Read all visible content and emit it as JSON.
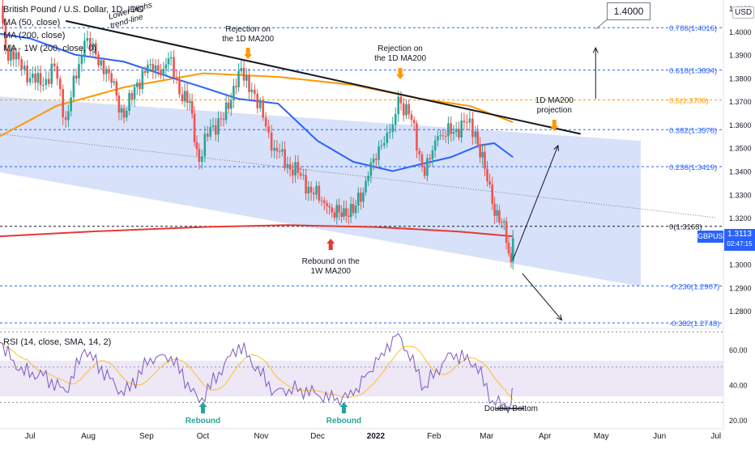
{
  "title": "British Pound / U.S. Dollar, 1D, IDC",
  "legend": [
    "MA (50, close)",
    "MA (200, close)",
    "MA · 1W (200, close, 0)"
  ],
  "currency_badge": "USD",
  "ticker_label": "GBPUSD",
  "last_price": "1.3113",
  "countdown": "02:47:15",
  "callout_target": "1.4000",
  "rsi_legend": "RSI (14, close, SMA, 14, 2)",
  "colors": {
    "candle_up": "#26a69a",
    "candle_down": "#ef5350",
    "ma50": "#2962ff",
    "ma200": "#ff9800",
    "ma1w": "#e53935",
    "channel_fill": "#c9d7f7",
    "rsi_line": "#7e57c2",
    "rsi_ma": "#fbc02d",
    "fib_line": "#2962ff",
    "fib_half": "#ff9800"
  },
  "annotations": {
    "lower_highs": "Lower Highs\ntrend-line",
    "rejection_1d_top": "Rejection on\nthe 1D MA200",
    "rejection_1d_mid": "Rejection on\nthe 1D MA200",
    "rebound_1w": "Rebound on the\n1W MA200",
    "ma200_projection": "1D MA200\nprojection",
    "double_bottom": "Double Bottom",
    "rebound_rsi_1": "Rebound",
    "rebound_rsi_2": "Rebound"
  },
  "fib_levels": [
    {
      "label": "0.786(1.4016)",
      "price": 1.4016
    },
    {
      "label": "0.618(1.3834)",
      "price": 1.3834
    },
    {
      "label": "0.5(1.3706)",
      "price": 1.3706
    },
    {
      "label": "0.382(1.3578)",
      "price": 1.3578
    },
    {
      "label": "0.236(1.3419)",
      "price": 1.3419
    },
    {
      "label": "0(1.3163)",
      "price": 1.3163
    },
    {
      "label": "-0.236(1.2907)",
      "price": 1.2907
    },
    {
      "label": "-0.382(1.2748)",
      "price": 1.2748
    }
  ],
  "chart_data": {
    "type": "candlestick",
    "title": "British Pound / U.S. Dollar, 1D, IDC",
    "symbol": "GBPUSD",
    "price_axis": {
      "ticks": [
        "1.4100",
        "1.4000",
        "1.3900",
        "1.3800",
        "1.3700",
        "1.3600",
        "1.3500",
        "1.3400",
        "1.3300",
        "1.3200",
        "1.3100",
        "1.3000",
        "1.2900",
        "1.2800"
      ],
      "range": [
        1.2745,
        1.4135
      ]
    },
    "time_axis": {
      "ticks": [
        "Jul",
        "Aug",
        "Sep",
        "Oct",
        "Nov",
        "Dec",
        "2022",
        "Feb",
        "Mar",
        "Apr",
        "May",
        "Jun",
        "Jul"
      ],
      "range": [
        "2021-06-15",
        "2022-07-05"
      ]
    },
    "closes": [
      {
        "date": "2021-06-15",
        "close": 1.411
      },
      {
        "date": "2021-06-18",
        "close": 1.392
      },
      {
        "date": "2021-06-25",
        "close": 1.388
      },
      {
        "date": "2021-07-01",
        "close": 1.38
      },
      {
        "date": "2021-07-08",
        "close": 1.377
      },
      {
        "date": "2021-07-14",
        "close": 1.385
      },
      {
        "date": "2021-07-20",
        "close": 1.362
      },
      {
        "date": "2021-07-27",
        "close": 1.386
      },
      {
        "date": "2021-07-30",
        "close": 1.396
      },
      {
        "date": "2021-08-05",
        "close": 1.39
      },
      {
        "date": "2021-08-12",
        "close": 1.382
      },
      {
        "date": "2021-08-20",
        "close": 1.363
      },
      {
        "date": "2021-08-27",
        "close": 1.378
      },
      {
        "date": "2021-09-03",
        "close": 1.386
      },
      {
        "date": "2021-09-10",
        "close": 1.384
      },
      {
        "date": "2021-09-14",
        "close": 1.389
      },
      {
        "date": "2021-09-20",
        "close": 1.37
      },
      {
        "date": "2021-09-24",
        "close": 1.37
      },
      {
        "date": "2021-09-29",
        "close": 1.344
      },
      {
        "date": "2021-10-05",
        "close": 1.359
      },
      {
        "date": "2021-10-12",
        "close": 1.362
      },
      {
        "date": "2021-10-20",
        "close": 1.383
      },
      {
        "date": "2021-10-27",
        "close": 1.375
      },
      {
        "date": "2021-11-02",
        "close": 1.363
      },
      {
        "date": "2021-11-08",
        "close": 1.35
      },
      {
        "date": "2021-11-15",
        "close": 1.343
      },
      {
        "date": "2021-11-22",
        "close": 1.338
      },
      {
        "date": "2021-11-29",
        "close": 1.33
      },
      {
        "date": "2021-12-06",
        "close": 1.325
      },
      {
        "date": "2021-12-10",
        "close": 1.32
      },
      {
        "date": "2021-12-15",
        "close": 1.324
      },
      {
        "date": "2021-12-20",
        "close": 1.322
      },
      {
        "date": "2021-12-28",
        "close": 1.338
      },
      {
        "date": "2022-01-04",
        "close": 1.351
      },
      {
        "date": "2022-01-10",
        "close": 1.36
      },
      {
        "date": "2022-01-13",
        "close": 1.372
      },
      {
        "date": "2022-01-20",
        "close": 1.362
      },
      {
        "date": "2022-01-27",
        "close": 1.338
      },
      {
        "date": "2022-02-03",
        "close": 1.355
      },
      {
        "date": "2022-02-10",
        "close": 1.356
      },
      {
        "date": "2022-02-17",
        "close": 1.361
      },
      {
        "date": "2022-02-23",
        "close": 1.357
      },
      {
        "date": "2022-02-28",
        "close": 1.341
      },
      {
        "date": "2022-03-04",
        "close": 1.326
      },
      {
        "date": "2022-03-09",
        "close": 1.318
      },
      {
        "date": "2022-03-14",
        "close": 1.301
      },
      {
        "date": "2022-03-15",
        "close": 1.3113
      }
    ],
    "rsi": {
      "name": "RSI (14, close, SMA, 14, 2)",
      "ticks": [
        "60.00",
        "40.00",
        "20.00"
      ],
      "range": [
        15,
        71
      ],
      "values": [
        {
          "date": "2021-06-15",
          "v": 64
        },
        {
          "date": "2021-06-25",
          "v": 48
        },
        {
          "date": "2021-07-08",
          "v": 45
        },
        {
          "date": "2021-07-20",
          "v": 36
        },
        {
          "date": "2021-07-30",
          "v": 60
        },
        {
          "date": "2021-08-20",
          "v": 34
        },
        {
          "date": "2021-09-03",
          "v": 55
        },
        {
          "date": "2021-09-14",
          "v": 56
        },
        {
          "date": "2021-09-29",
          "v": 30
        },
        {
          "date": "2021-10-20",
          "v": 63
        },
        {
          "date": "2021-11-08",
          "v": 36
        },
        {
          "date": "2021-11-22",
          "v": 38
        },
        {
          "date": "2021-12-10",
          "v": 31
        },
        {
          "date": "2021-12-20",
          "v": 34
        },
        {
          "date": "2022-01-04",
          "v": 58
        },
        {
          "date": "2022-01-13",
          "v": 69
        },
        {
          "date": "2022-01-27",
          "v": 39
        },
        {
          "date": "2022-02-10",
          "v": 58
        },
        {
          "date": "2022-02-23",
          "v": 52
        },
        {
          "date": "2022-03-04",
          "v": 31
        },
        {
          "date": "2022-03-09",
          "v": 28
        },
        {
          "date": "2022-03-14",
          "v": 29
        },
        {
          "date": "2022-03-15",
          "v": 38
        }
      ]
    }
  }
}
